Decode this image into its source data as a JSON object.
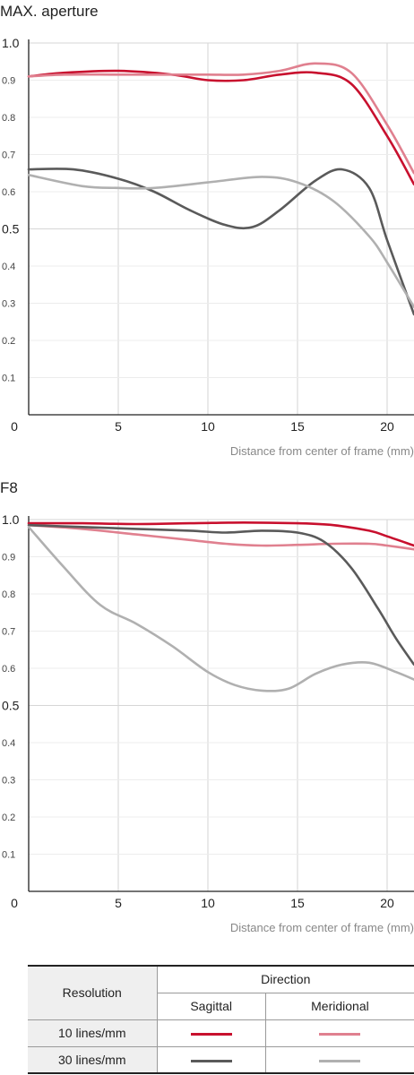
{
  "chart_data": [
    {
      "type": "line",
      "title": "MAX. aperture",
      "xlabel": "Distance from center of frame (mm)",
      "ylabel": "",
      "xlim": [
        0,
        21.5
      ],
      "ylim": [
        0,
        1.0
      ],
      "x_ticks": [
        {
          "v": 0,
          "t": "0"
        },
        {
          "v": 5,
          "t": "5"
        },
        {
          "v": 10,
          "t": "10"
        },
        {
          "v": 15,
          "t": "15"
        },
        {
          "v": 20,
          "t": "20"
        }
      ],
      "y_ticks": [
        {
          "v": 0.1,
          "t": "0.1"
        },
        {
          "v": 0.2,
          "t": "0.2"
        },
        {
          "v": 0.3,
          "t": "0.3"
        },
        {
          "v": 0.4,
          "t": "0.4"
        },
        {
          "v": 0.5,
          "t": "0.5",
          "major": true
        },
        {
          "v": 0.6,
          "t": "0.6"
        },
        {
          "v": 0.7,
          "t": "0.7"
        },
        {
          "v": 0.8,
          "t": "0.8"
        },
        {
          "v": 0.9,
          "t": "0.9"
        },
        {
          "v": 1.0,
          "t": "1.0",
          "major": true
        }
      ],
      "grid": true,
      "series": [
        {
          "resolution": "10 lines/mm",
          "direction": "Sagittal",
          "color": "#c8102e",
          "x": [
            0,
            2,
            5,
            8,
            10,
            12,
            14,
            16,
            18,
            20,
            21.5
          ],
          "y": [
            0.91,
            0.92,
            0.925,
            0.915,
            0.9,
            0.9,
            0.915,
            0.92,
            0.89,
            0.75,
            0.62
          ]
        },
        {
          "resolution": "10 lines/mm",
          "direction": "Meridional",
          "color": "#e0808f",
          "x": [
            0,
            2,
            5,
            8,
            10,
            12,
            14,
            16,
            18,
            20,
            21.5
          ],
          "y": [
            0.91,
            0.915,
            0.915,
            0.915,
            0.915,
            0.915,
            0.925,
            0.945,
            0.92,
            0.78,
            0.65
          ]
        },
        {
          "resolution": "30 lines/mm",
          "direction": "Sagittal",
          "color": "#5a5a5a",
          "x": [
            0,
            2.5,
            5,
            7,
            9,
            11,
            12.5,
            14,
            16,
            17.5,
            19,
            20,
            21.5
          ],
          "y": [
            0.66,
            0.66,
            0.635,
            0.6,
            0.55,
            0.51,
            0.505,
            0.55,
            0.63,
            0.66,
            0.61,
            0.47,
            0.27
          ]
        },
        {
          "resolution": "30 lines/mm",
          "direction": "Meridional",
          "color": "#b0b0b0",
          "x": [
            0,
            3,
            5,
            7,
            10,
            13,
            15,
            17,
            19,
            20,
            21.5
          ],
          "y": [
            0.645,
            0.615,
            0.61,
            0.61,
            0.625,
            0.64,
            0.625,
            0.575,
            0.48,
            0.41,
            0.29
          ]
        }
      ]
    },
    {
      "type": "line",
      "title": "F8",
      "xlabel": "Distance from center of frame (mm)",
      "ylabel": "",
      "xlim": [
        0,
        21.5
      ],
      "ylim": [
        0,
        1.0
      ],
      "x_ticks": [
        {
          "v": 0,
          "t": "0"
        },
        {
          "v": 5,
          "t": "5"
        },
        {
          "v": 10,
          "t": "10"
        },
        {
          "v": 15,
          "t": "15"
        },
        {
          "v": 20,
          "t": "20"
        }
      ],
      "y_ticks": [
        {
          "v": 0.1,
          "t": "0.1"
        },
        {
          "v": 0.2,
          "t": "0.2"
        },
        {
          "v": 0.3,
          "t": "0.3"
        },
        {
          "v": 0.4,
          "t": "0.4"
        },
        {
          "v": 0.5,
          "t": "0.5",
          "major": true
        },
        {
          "v": 0.6,
          "t": "0.6"
        },
        {
          "v": 0.7,
          "t": "0.7"
        },
        {
          "v": 0.8,
          "t": "0.8"
        },
        {
          "v": 0.9,
          "t": "0.9"
        },
        {
          "v": 1.0,
          "t": "1.0",
          "major": true
        }
      ],
      "grid": true,
      "series": [
        {
          "resolution": "10 lines/mm",
          "direction": "Sagittal",
          "color": "#c8102e",
          "x": [
            0,
            3,
            6,
            9,
            12,
            15,
            17,
            19,
            20,
            21.5
          ],
          "y": [
            0.99,
            0.99,
            0.988,
            0.99,
            0.992,
            0.99,
            0.985,
            0.97,
            0.955,
            0.93
          ]
        },
        {
          "resolution": "10 lines/mm",
          "direction": "Meridional",
          "color": "#e0808f",
          "x": [
            0,
            3,
            6,
            9,
            11,
            13,
            15,
            17,
            19,
            20,
            21.5
          ],
          "y": [
            0.985,
            0.975,
            0.96,
            0.945,
            0.935,
            0.93,
            0.932,
            0.935,
            0.935,
            0.93,
            0.92
          ]
        },
        {
          "resolution": "30 lines/mm",
          "direction": "Sagittal",
          "color": "#5a5a5a",
          "x": [
            0,
            3,
            6,
            9,
            11,
            13,
            15,
            16.5,
            18,
            19.5,
            20.5,
            21.5
          ],
          "y": [
            0.985,
            0.98,
            0.975,
            0.97,
            0.965,
            0.97,
            0.965,
            0.94,
            0.87,
            0.76,
            0.68,
            0.61
          ]
        },
        {
          "resolution": "30 lines/mm",
          "direction": "Meridional",
          "color": "#b0b0b0",
          "x": [
            0,
            2,
            4,
            6,
            8,
            10,
            11.5,
            13,
            14.5,
            16,
            17.5,
            19,
            20.5,
            21.5
          ],
          "y": [
            0.98,
            0.87,
            0.77,
            0.72,
            0.66,
            0.59,
            0.555,
            0.54,
            0.545,
            0.585,
            0.61,
            0.615,
            0.59,
            0.57
          ]
        }
      ]
    }
  ],
  "legend": {
    "resolution_header": "Resolution",
    "direction_header": "Direction",
    "sagittal_header": "Sagittal",
    "meridional_header": "Meridional",
    "rows": [
      {
        "label": "10 lines/mm",
        "sagittal_color": "#c8102e",
        "meridional_color": "#e0808f"
      },
      {
        "label": "30 lines/mm",
        "sagittal_color": "#5a5a5a",
        "meridional_color": "#b0b0b0"
      }
    ]
  }
}
